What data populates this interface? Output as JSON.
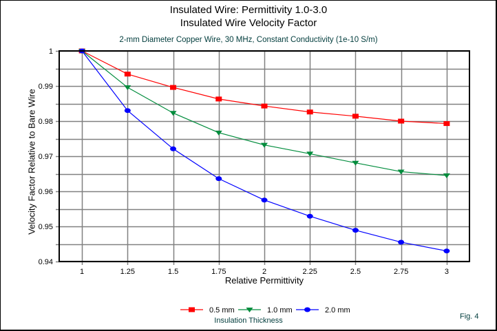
{
  "chart_data": {
    "type": "line",
    "title": "Insulated Wire:  Permittivity 1.0-3.0",
    "title2": "Insulated Wire Velocity Factor",
    "subtitle": "2-mm Diameter Copper Wire, 30 MHz, Constant Conductivity (1e-10 S/m)",
    "xlabel": "Relative Permittivity",
    "ylabel": "Velocity Factor Relative to Bare Wire",
    "x": [
      1,
      1.25,
      1.5,
      1.75,
      2,
      2.25,
      2.5,
      2.75,
      3
    ],
    "xlim": [
      0.875,
      3.125
    ],
    "ylim": [
      0.94,
      1.0
    ],
    "xticks": [
      "1",
      "1.25",
      "1.5",
      "1.75",
      "2",
      "2.25",
      "2.5",
      "2.75",
      "3"
    ],
    "yticks": [
      "0.94",
      "0.95",
      "0.96",
      "0.97",
      "0.98",
      "0.99",
      "1"
    ],
    "ytick_values": [
      0.94,
      0.95,
      0.96,
      0.97,
      0.98,
      0.99,
      1.0
    ],
    "minor_ygrid_step": 0.005,
    "grid": true,
    "legend_title": "Insulation Thickness",
    "legend_position": "bottom",
    "series": [
      {
        "name": "0.5 mm",
        "color": "#ff0000",
        "marker": "square",
        "values": [
          1.0,
          0.9934,
          0.9896,
          0.9863,
          0.9843,
          0.9826,
          0.9814,
          0.98,
          0.9793
        ]
      },
      {
        "name": "1.0 mm",
        "color": "#008c3c",
        "marker": "triangle-down",
        "values": [
          1.0,
          0.9896,
          0.9823,
          0.9767,
          0.9732,
          0.9707,
          0.9681,
          0.9656,
          0.9645
        ]
      },
      {
        "name": "2.0 mm",
        "color": "#0000ff",
        "marker": "circle",
        "values": [
          1.0,
          0.983,
          0.9721,
          0.9636,
          0.9575,
          0.9529,
          0.9489,
          0.9455,
          0.943
        ]
      }
    ]
  },
  "figure_label": "Fig. 4"
}
